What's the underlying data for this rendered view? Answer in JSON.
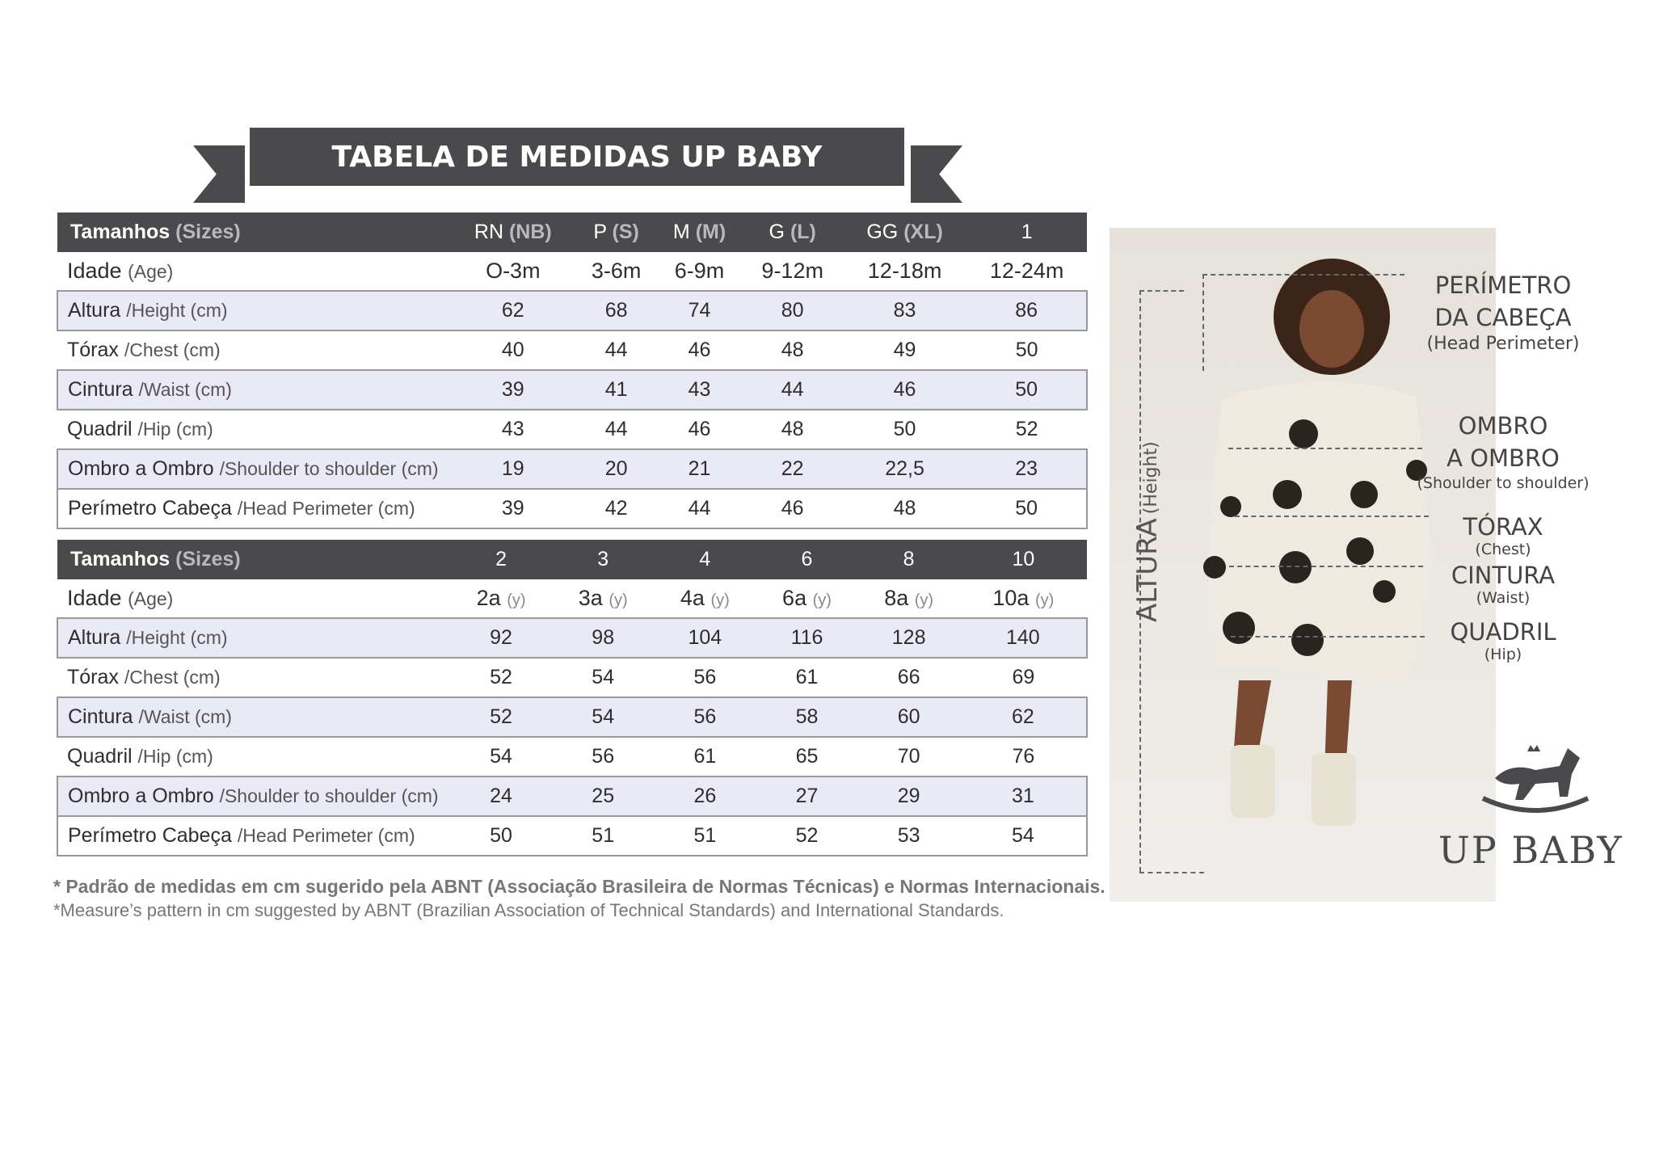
{
  "title": "TABELA DE MEDIDAS UP BABY",
  "tables": [
    {
      "header": {
        "label": "Tamanhos",
        "label_en": "(Sizes)",
        "sizes": [
          [
            "RN",
            "(NB)"
          ],
          [
            "P",
            "(S)"
          ],
          [
            "M",
            "(M)"
          ],
          [
            "G",
            "(L)"
          ],
          [
            "GG",
            "(XL)"
          ],
          [
            "1",
            ""
          ]
        ]
      },
      "rows": [
        {
          "label": "Idade",
          "en": "(Age)",
          "values": [
            "O-3m",
            "3-6m",
            "6-9m",
            "9-12m",
            "12-18m",
            "12-24m"
          ]
        },
        {
          "label": "Altura",
          "en": "/Height (cm)",
          "values": [
            "62",
            "68",
            "74",
            "80",
            "83",
            "86"
          ]
        },
        {
          "label": "Tórax",
          "en": "/Chest (cm)",
          "values": [
            "40",
            "44",
            "46",
            "48",
            "49",
            "50"
          ]
        },
        {
          "label": "Cintura",
          "en": "/Waist (cm)",
          "values": [
            "39",
            "41",
            "43",
            "44",
            "46",
            "50"
          ]
        },
        {
          "label": "Quadril",
          "en": "/Hip (cm)",
          "values": [
            "43",
            "44",
            "46",
            "48",
            "50",
            "52"
          ]
        },
        {
          "label": "Ombro a Ombro",
          "en": "/Shoulder to shoulder (cm)",
          "values": [
            "19",
            "20",
            "21",
            "22",
            "22,5",
            "23"
          ]
        },
        {
          "label": "Perímetro Cabeça",
          "en": "/Head Perimeter (cm)",
          "values": [
            "39",
            "42",
            "44",
            "46",
            "48",
            "50"
          ]
        }
      ]
    },
    {
      "header": {
        "label": "Tamanhos",
        "label_en": "(Sizes)",
        "sizes": [
          [
            "2",
            ""
          ],
          [
            "3",
            ""
          ],
          [
            "4",
            ""
          ],
          [
            "6",
            ""
          ],
          [
            "8",
            ""
          ],
          [
            "10",
            ""
          ]
        ]
      },
      "rows": [
        {
          "label": "Idade",
          "en": "(Age)",
          "values": [
            "2a",
            "3a",
            "4a",
            "6a",
            "8a",
            "10a"
          ],
          "unit": "(y)"
        },
        {
          "label": "Altura",
          "en": "/Height (cm)",
          "values": [
            "92",
            "98",
            "104",
            "116",
            "128",
            "140"
          ]
        },
        {
          "label": "Tórax",
          "en": "/Chest (cm)",
          "values": [
            "52",
            "54",
            "56",
            "61",
            "66",
            "69"
          ]
        },
        {
          "label": "Cintura",
          "en": "/Waist (cm)",
          "values": [
            "52",
            "54",
            "56",
            "58",
            "60",
            "62"
          ]
        },
        {
          "label": "Quadril",
          "en": "/Hip (cm)",
          "values": [
            "54",
            "56",
            "61",
            "65",
            "70",
            "76"
          ]
        },
        {
          "label": "Ombro a Ombro",
          "en": "/Shoulder to shoulder (cm)",
          "values": [
            "24",
            "25",
            "26",
            "27",
            "29",
            "31"
          ]
        },
        {
          "label": "Perímetro Cabeça",
          "en": "/Head Perimeter (cm)",
          "values": [
            "50",
            "51",
            "51",
            "52",
            "53",
            "54"
          ]
        }
      ]
    }
  ],
  "notes": {
    "pt": "* Padrão de medidas em cm sugerido pela ABNT (Associação Brasileira de Normas Técnicas) e Normas Internacionais.",
    "en": "*Measure’s pattern in cm suggested by ABNT (Brazilian Association of Technical Standards) and International Standards."
  },
  "diagram": {
    "height": {
      "pt": "ALTURA",
      "en": "(Height)"
    },
    "head": {
      "l1": "PERÍMETRO",
      "l2": "DA CABEÇA",
      "en": "(Head Perimeter)"
    },
    "shoulder": {
      "l1": "OMBRO",
      "l2": "A OMBRO",
      "en": "(Shoulder to shoulder)"
    },
    "chest": {
      "l1": "TÓRAX",
      "en": "(Chest)"
    },
    "waist": {
      "l1": "CINTURA",
      "en": "(Waist)"
    },
    "hip": {
      "l1": "QUADRIL",
      "en": "(Hip)"
    }
  },
  "logo": {
    "text": "UP BABY"
  },
  "colors": {
    "banner": "#4a4a4c",
    "row_shade": "#e9eaf5"
  }
}
